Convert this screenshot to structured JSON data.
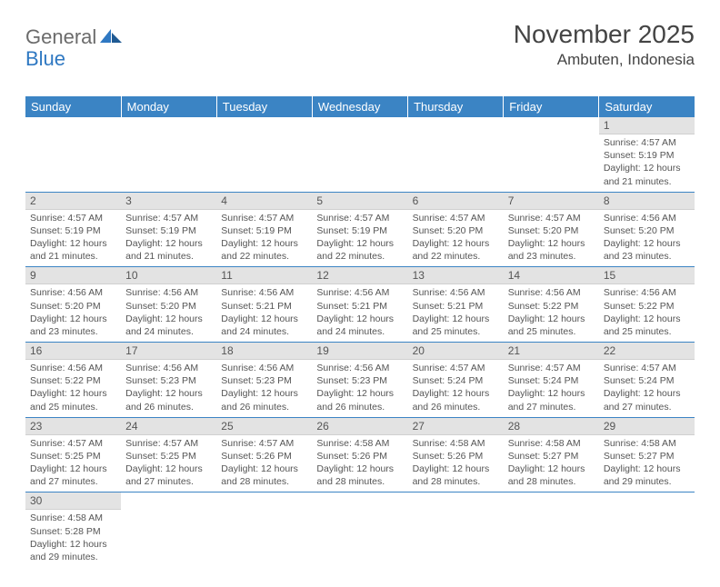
{
  "logo": {
    "textGray": "General",
    "textBlue": "Blue"
  },
  "header": {
    "title": "November 2025",
    "location": "Ambuten, Indonesia"
  },
  "colors": {
    "headerBg": "#3b84c4",
    "headerText": "#ffffff",
    "dayNumBg": "#e3e3e3",
    "bodyText": "#555555",
    "rowBorder": "#3b84c4",
    "logoGray": "#6b6b6b",
    "logoBlue": "#2f78c2"
  },
  "dayHeaders": [
    "Sunday",
    "Monday",
    "Tuesday",
    "Wednesday",
    "Thursday",
    "Friday",
    "Saturday"
  ],
  "weeks": [
    [
      null,
      null,
      null,
      null,
      null,
      null,
      {
        "n": "1",
        "sr": "4:57 AM",
        "ss": "5:19 PM",
        "dh": "12",
        "dm": "21"
      }
    ],
    [
      {
        "n": "2",
        "sr": "4:57 AM",
        "ss": "5:19 PM",
        "dh": "12",
        "dm": "21"
      },
      {
        "n": "3",
        "sr": "4:57 AM",
        "ss": "5:19 PM",
        "dh": "12",
        "dm": "21"
      },
      {
        "n": "4",
        "sr": "4:57 AM",
        "ss": "5:19 PM",
        "dh": "12",
        "dm": "22"
      },
      {
        "n": "5",
        "sr": "4:57 AM",
        "ss": "5:19 PM",
        "dh": "12",
        "dm": "22"
      },
      {
        "n": "6",
        "sr": "4:57 AM",
        "ss": "5:20 PM",
        "dh": "12",
        "dm": "22"
      },
      {
        "n": "7",
        "sr": "4:57 AM",
        "ss": "5:20 PM",
        "dh": "12",
        "dm": "23"
      },
      {
        "n": "8",
        "sr": "4:56 AM",
        "ss": "5:20 PM",
        "dh": "12",
        "dm": "23"
      }
    ],
    [
      {
        "n": "9",
        "sr": "4:56 AM",
        "ss": "5:20 PM",
        "dh": "12",
        "dm": "23"
      },
      {
        "n": "10",
        "sr": "4:56 AM",
        "ss": "5:20 PM",
        "dh": "12",
        "dm": "24"
      },
      {
        "n": "11",
        "sr": "4:56 AM",
        "ss": "5:21 PM",
        "dh": "12",
        "dm": "24"
      },
      {
        "n": "12",
        "sr": "4:56 AM",
        "ss": "5:21 PM",
        "dh": "12",
        "dm": "24"
      },
      {
        "n": "13",
        "sr": "4:56 AM",
        "ss": "5:21 PM",
        "dh": "12",
        "dm": "25"
      },
      {
        "n": "14",
        "sr": "4:56 AM",
        "ss": "5:22 PM",
        "dh": "12",
        "dm": "25"
      },
      {
        "n": "15",
        "sr": "4:56 AM",
        "ss": "5:22 PM",
        "dh": "12",
        "dm": "25"
      }
    ],
    [
      {
        "n": "16",
        "sr": "4:56 AM",
        "ss": "5:22 PM",
        "dh": "12",
        "dm": "25"
      },
      {
        "n": "17",
        "sr": "4:56 AM",
        "ss": "5:23 PM",
        "dh": "12",
        "dm": "26"
      },
      {
        "n": "18",
        "sr": "4:56 AM",
        "ss": "5:23 PM",
        "dh": "12",
        "dm": "26"
      },
      {
        "n": "19",
        "sr": "4:56 AM",
        "ss": "5:23 PM",
        "dh": "12",
        "dm": "26"
      },
      {
        "n": "20",
        "sr": "4:57 AM",
        "ss": "5:24 PM",
        "dh": "12",
        "dm": "26"
      },
      {
        "n": "21",
        "sr": "4:57 AM",
        "ss": "5:24 PM",
        "dh": "12",
        "dm": "27"
      },
      {
        "n": "22",
        "sr": "4:57 AM",
        "ss": "5:24 PM",
        "dh": "12",
        "dm": "27"
      }
    ],
    [
      {
        "n": "23",
        "sr": "4:57 AM",
        "ss": "5:25 PM",
        "dh": "12",
        "dm": "27"
      },
      {
        "n": "24",
        "sr": "4:57 AM",
        "ss": "5:25 PM",
        "dh": "12",
        "dm": "27"
      },
      {
        "n": "25",
        "sr": "4:57 AM",
        "ss": "5:26 PM",
        "dh": "12",
        "dm": "28"
      },
      {
        "n": "26",
        "sr": "4:58 AM",
        "ss": "5:26 PM",
        "dh": "12",
        "dm": "28"
      },
      {
        "n": "27",
        "sr": "4:58 AM",
        "ss": "5:26 PM",
        "dh": "12",
        "dm": "28"
      },
      {
        "n": "28",
        "sr": "4:58 AM",
        "ss": "5:27 PM",
        "dh": "12",
        "dm": "28"
      },
      {
        "n": "29",
        "sr": "4:58 AM",
        "ss": "5:27 PM",
        "dh": "12",
        "dm": "29"
      }
    ],
    [
      {
        "n": "30",
        "sr": "4:58 AM",
        "ss": "5:28 PM",
        "dh": "12",
        "dm": "29"
      },
      null,
      null,
      null,
      null,
      null,
      null
    ]
  ],
  "labels": {
    "sunrise": "Sunrise:",
    "sunset": "Sunset:",
    "daylight": "Daylight:",
    "hours": "hours",
    "and": "and",
    "minutes": "minutes."
  }
}
